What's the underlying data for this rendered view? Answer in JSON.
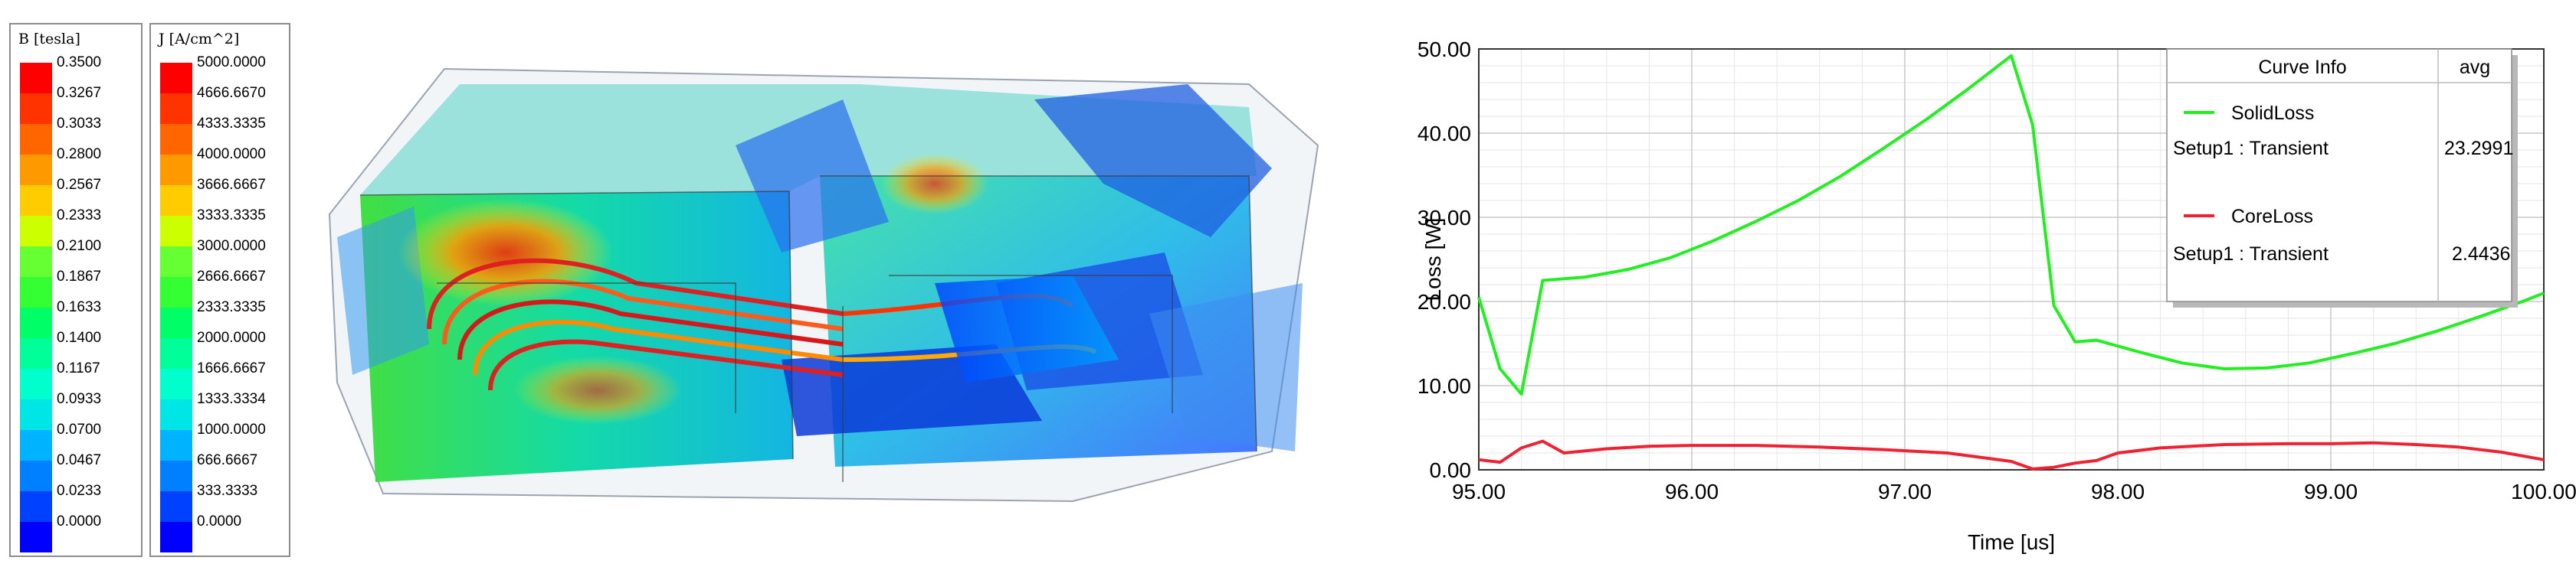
{
  "legend_b": {
    "title": "B [tesla]",
    "ticks": [
      "0.3500",
      "0.3267",
      "0.3033",
      "0.2800",
      "0.2567",
      "0.2333",
      "0.2100",
      "0.1867",
      "0.1633",
      "0.1400",
      "0.1167",
      "0.0933",
      "0.0700",
      "0.0467",
      "0.0233",
      "0.0000"
    ],
    "colors": [
      "#ff0000",
      "#ff3300",
      "#ff6600",
      "#ff9900",
      "#ffcc00",
      "#ccff00",
      "#66ff33",
      "#33ff33",
      "#00ff66",
      "#00ff99",
      "#00ffcc",
      "#00e5e5",
      "#00b3ff",
      "#0080ff",
      "#0040ff",
      "#0000ff"
    ]
  },
  "legend_j": {
    "title": "J [A/cm^2]",
    "ticks": [
      "5000.0000",
      "4666.6670",
      "4333.3335",
      "4000.0000",
      "3666.6667",
      "3333.3335",
      "3000.0000",
      "2666.6667",
      "2333.3335",
      "2000.0000",
      "1666.6667",
      "1333.3334",
      "1000.0000",
      "666.6667",
      "333.3333",
      "0.0000"
    ],
    "colors": [
      "#ff0000",
      "#ff3300",
      "#ff6600",
      "#ff9900",
      "#ffcc00",
      "#ccff00",
      "#66ff33",
      "#33ff33",
      "#00ff66",
      "#00ff99",
      "#00ffcc",
      "#00e5e5",
      "#00b3ff",
      "#0080ff",
      "#0040ff",
      "#0000ff"
    ]
  },
  "chart_data": {
    "type": "line",
    "xlabel": "Time [us]",
    "ylabel": "Loss [W]",
    "xlim": [
      95.0,
      100.0
    ],
    "ylim": [
      0.0,
      50.0
    ],
    "xticks": [
      "95.00",
      "96.00",
      "97.00",
      "98.00",
      "99.00",
      "100.00"
    ],
    "yticks": [
      "0.00",
      "10.00",
      "20.00",
      "30.00",
      "40.00",
      "50.00"
    ],
    "grid": true,
    "legend_position": "top-right",
    "legend": {
      "header": [
        "Curve Info",
        "avg"
      ],
      "entries": [
        {
          "name": "SolidLoss",
          "setup": "Setup1 : Transient",
          "avg": "23.2991",
          "color": "#22ee22"
        },
        {
          "name": "CoreLoss",
          "setup": "Setup1 : Transient",
          "avg": "2.4436",
          "color": "#ee2233"
        }
      ]
    },
    "series": [
      {
        "name": "SolidLoss",
        "color": "#22ee22",
        "x": [
          95.0,
          95.1,
          95.2,
          95.3,
          95.5,
          95.7,
          95.9,
          96.1,
          96.3,
          96.5,
          96.7,
          96.9,
          97.1,
          97.3,
          97.5,
          97.6,
          97.7,
          97.8,
          97.9,
          98.1,
          98.3,
          98.5,
          98.7,
          98.9,
          99.1,
          99.3,
          99.5,
          99.7,
          99.9,
          100.0
        ],
        "y": [
          20.5,
          12.0,
          9.0,
          22.5,
          22.9,
          23.8,
          25.2,
          27.2,
          29.5,
          32.0,
          34.9,
          38.2,
          41.6,
          45.3,
          49.2,
          41.0,
          19.5,
          15.2,
          15.4,
          14.0,
          12.7,
          12.0,
          12.1,
          12.7,
          13.8,
          15.0,
          16.5,
          18.2,
          20.0,
          21.0
        ]
      },
      {
        "name": "CoreLoss",
        "color": "#ee2233",
        "x": [
          95.0,
          95.1,
          95.2,
          95.3,
          95.4,
          95.6,
          95.8,
          96.0,
          96.3,
          96.6,
          96.9,
          97.2,
          97.5,
          97.6,
          97.7,
          97.8,
          97.9,
          98.0,
          98.2,
          98.5,
          98.8,
          99.0,
          99.2,
          99.4,
          99.6,
          99.8,
          100.0
        ],
        "y": [
          1.2,
          0.9,
          2.6,
          3.4,
          2.0,
          2.5,
          2.8,
          2.9,
          2.9,
          2.7,
          2.4,
          2.0,
          1.0,
          0.1,
          0.3,
          0.8,
          1.1,
          2.0,
          2.6,
          3.0,
          3.1,
          3.1,
          3.2,
          3.0,
          2.7,
          2.1,
          1.2
        ]
      }
    ]
  }
}
